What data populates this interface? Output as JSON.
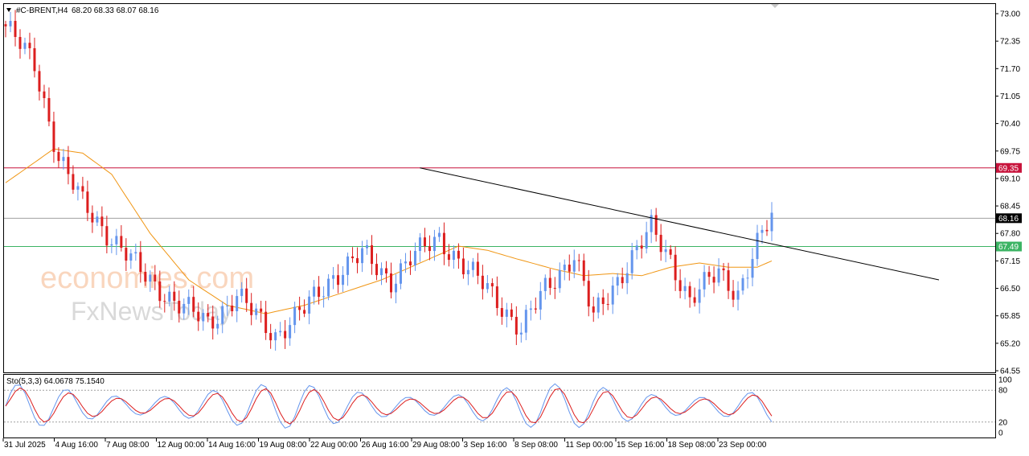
{
  "header": {
    "menu_icon": "triangle-down-icon",
    "symbol_timeframe": "#C-BRENT,H4",
    "ohlc": "68.20 68.33 68.07 68.16"
  },
  "watermark": {
    "line1": "economies.com",
    "line2": "FxNewsToday"
  },
  "oscillator": {
    "label": "Sto(5,3,3) 64.0678 75.1540",
    "ticks": [
      "100",
      "80",
      "20",
      "0"
    ],
    "levels": [
      80,
      20
    ]
  },
  "colors": {
    "bull": "#6495ed",
    "bear": "#dc1e1e",
    "resistance": "#c8143c",
    "support": "#3cb464",
    "price_line": "#a0a0a0",
    "ma": "#f09614",
    "trendline": "#000000",
    "stoch_main": "#6495ed",
    "stoch_signal": "#dc1e1e"
  },
  "chart_data": {
    "type": "candlestick",
    "symbol": "#C-BRENT",
    "timeframe": "H4",
    "ylim": [
      64.55,
      73.0
    ],
    "y_ticks": [
      "73.00",
      "72.35",
      "71.70",
      "71.05",
      "70.40",
      "69.75",
      "69.10",
      "68.45",
      "67.80",
      "67.15",
      "66.50",
      "65.85",
      "65.20",
      "64.55"
    ],
    "x_ticks": [
      "31 Jul 2025",
      "4 Aug 16:00",
      "7 Aug 08:00",
      "12 Aug 00:00",
      "14 Aug 16:00",
      "19 Aug 08:00",
      "22 Aug 00:00",
      "26 Aug 16:00",
      "29 Aug 08:00",
      "3 Sep 16:00",
      "8 Sep 08:00",
      "11 Sep 00:00",
      "15 Sep 16:00",
      "18 Sep 08:00",
      "23 Sep 00:00"
    ],
    "horizontal_lines": [
      {
        "value": 69.35,
        "label": "69.35",
        "role": "resistance"
      },
      {
        "value": 68.16,
        "label": "68.16",
        "role": "current price"
      },
      {
        "value": 67.49,
        "label": "67.49",
        "role": "support"
      }
    ],
    "trendline": {
      "from_value": 69.35,
      "to_value": 66.7
    },
    "candle_count": 160,
    "close_path": [
      [
        0,
        72.7
      ],
      [
        6,
        71.8
      ],
      [
        11,
        69.6
      ],
      [
        16,
        68.5
      ],
      [
        22,
        67.7
      ],
      [
        28,
        66.9
      ],
      [
        36,
        66.1
      ],
      [
        42,
        65.7
      ],
      [
        48,
        66.3
      ],
      [
        56,
        65.4
      ],
      [
        62,
        66.0
      ],
      [
        68,
        66.8
      ],
      [
        74,
        67.3
      ],
      [
        80,
        66.7
      ],
      [
        84,
        67.2
      ],
      [
        90,
        67.7
      ],
      [
        96,
        66.9
      ],
      [
        100,
        66.5
      ],
      [
        103,
        66.1
      ],
      [
        107,
        65.5
      ],
      [
        112,
        66.5
      ],
      [
        118,
        67.3
      ],
      [
        122,
        65.8
      ],
      [
        128,
        66.9
      ],
      [
        134,
        67.9
      ],
      [
        138,
        67.2
      ],
      [
        142,
        66.2
      ],
      [
        148,
        66.9
      ],
      [
        152,
        66.4
      ],
      [
        156,
        67.5
      ],
      [
        159,
        68.2
      ]
    ],
    "ma_path": [
      [
        0,
        69.0
      ],
      [
        10,
        69.8
      ],
      [
        16,
        69.7
      ],
      [
        22,
        69.2
      ],
      [
        30,
        67.8
      ],
      [
        38,
        66.7
      ],
      [
        46,
        66.1
      ],
      [
        54,
        65.9
      ],
      [
        62,
        66.1
      ],
      [
        70,
        66.4
      ],
      [
        78,
        66.7
      ],
      [
        86,
        67.1
      ],
      [
        94,
        67.5
      ],
      [
        100,
        67.4
      ],
      [
        106,
        67.2
      ],
      [
        114,
        66.95
      ],
      [
        120,
        66.8
      ],
      [
        126,
        66.85
      ],
      [
        132,
        66.8
      ],
      [
        138,
        67.0
      ],
      [
        144,
        67.1
      ],
      [
        150,
        67.0
      ],
      [
        156,
        67.0
      ],
      [
        159,
        67.15
      ]
    ]
  }
}
